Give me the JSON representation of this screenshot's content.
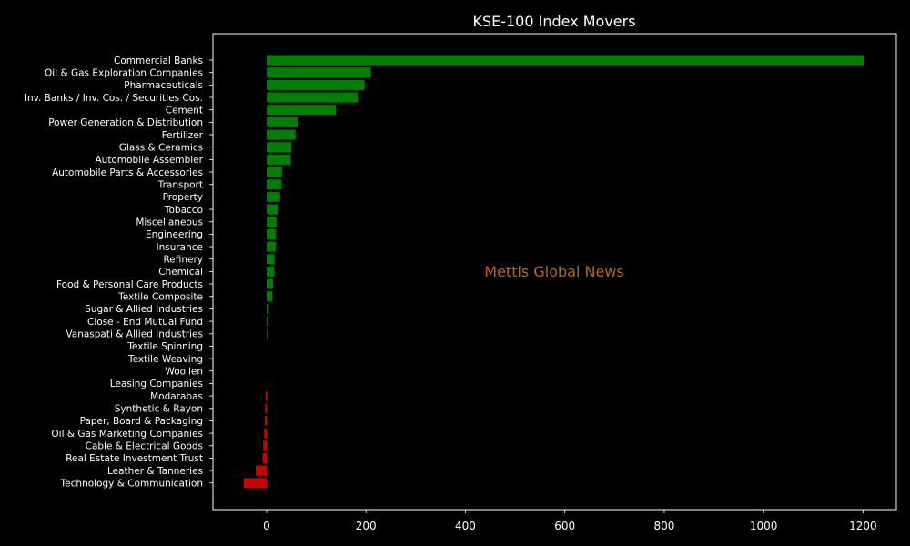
{
  "chart_data": {
    "type": "bar",
    "orientation": "horizontal",
    "title": "KSE-100 Index Movers",
    "xlabel": "",
    "ylabel": "",
    "xlim": [
      -108,
      1267
    ],
    "xticks": [
      0,
      200,
      400,
      600,
      800,
      1000,
      1200
    ],
    "grid": false,
    "legend": "none",
    "categories": [
      "Commercial Banks",
      "Oil & Gas Exploration Companies",
      "Pharmaceuticals",
      "Inv. Banks / Inv. Cos. / Securities Cos.",
      "Cement",
      "Power Generation & Distribution",
      "Fertilizer",
      "Glass & Ceramics",
      "Automobile Assembler",
      "Automobile Parts & Accessories",
      "Transport",
      "Property",
      "Tobacco",
      "Miscellaneous",
      "Engineering",
      "Insurance",
      "Refinery",
      "Chemical",
      "Food & Personal Care Products",
      "Textile Composite",
      "Sugar & Allied Industries",
      "Close - End Mutual Fund",
      "Vanaspati & Allied Industries",
      "Textile Spinning",
      "Textile Weaving",
      "Woollen",
      "Leasing Companies",
      "Modarabas",
      "Synthetic & Rayon",
      "Paper, Board & Packaging",
      "Oil & Gas Marketing Companies",
      "Cable & Electrical Goods",
      "Real Estate Investment Trust",
      "Leather & Tanneries",
      "Technology & Communication"
    ],
    "values": [
      1203,
      210,
      197,
      183,
      139,
      64,
      58,
      50,
      48,
      31,
      29,
      27,
      24,
      20,
      18,
      18,
      16,
      15,
      13,
      11,
      4,
      2,
      1,
      0,
      0,
      0,
      0,
      -2,
      -3,
      -4,
      -5,
      -7,
      -8,
      -22,
      -46
    ],
    "colors": {
      "positive": "#008000",
      "negative": "#cc0000",
      "background": "#000000",
      "axes": "#ffffff",
      "text": "#ffffff"
    }
  },
  "watermark": {
    "text": "Mettis Global News",
    "color": "#b5651d"
  }
}
